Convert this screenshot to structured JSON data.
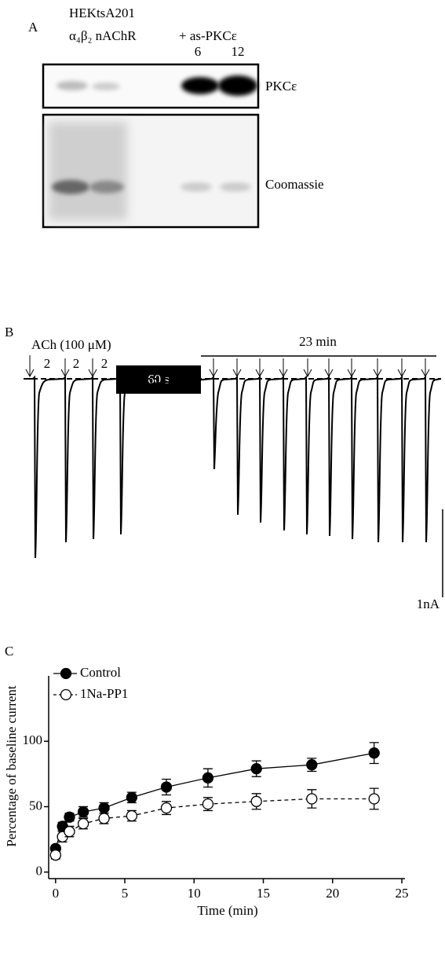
{
  "panel_a": {
    "label": "A",
    "cell_line": "HEKtsA201",
    "receptor": "α₄β₂ nAChR",
    "treatment": "+ as-PKCε",
    "lanes": [
      "6",
      "12"
    ],
    "blots": [
      "PKCε",
      "Coomassie"
    ]
  },
  "panel_b": {
    "label": "B",
    "agonist": "ACh (100 μM)",
    "intervals": [
      "2",
      "2",
      "2"
    ],
    "application": "60 s",
    "recording": "23 min",
    "scale": "1nA"
  },
  "chart_data": {
    "type": "scatter",
    "label": "C",
    "x_label": "Time (min)",
    "y_label": "Percentage of baseline current",
    "x": [
      0,
      0.5,
      1,
      2,
      3.5,
      5.5,
      8,
      11,
      14.5,
      18.5,
      23
    ],
    "series": [
      {
        "name": "Control",
        "color": "#000000",
        "marker_fill": "#000000",
        "line_style": "solid",
        "values": [
          18,
          35,
          42,
          46,
          49,
          57,
          65,
          72,
          79,
          82,
          91
        ],
        "errors": [
          2,
          3,
          3,
          4,
          4,
          4,
          6,
          7,
          6,
          5,
          8
        ]
      },
      {
        "name": "1Na-PP1",
        "color": "#000000",
        "marker_fill": "#ffffff",
        "line_style": "dashed",
        "values": [
          13,
          27,
          31,
          37,
          41,
          43,
          49,
          52,
          54,
          56,
          56
        ],
        "errors": [
          3,
          4,
          4,
          4,
          4,
          4,
          5,
          5,
          6,
          7,
          8
        ]
      }
    ],
    "xlim": [
      -0.5,
      25
    ],
    "ylim": [
      -5,
      150
    ],
    "xticks": [
      0,
      5,
      10,
      15,
      20,
      25
    ],
    "yticks": [
      0,
      50,
      100
    ],
    "legend": "upper left"
  }
}
